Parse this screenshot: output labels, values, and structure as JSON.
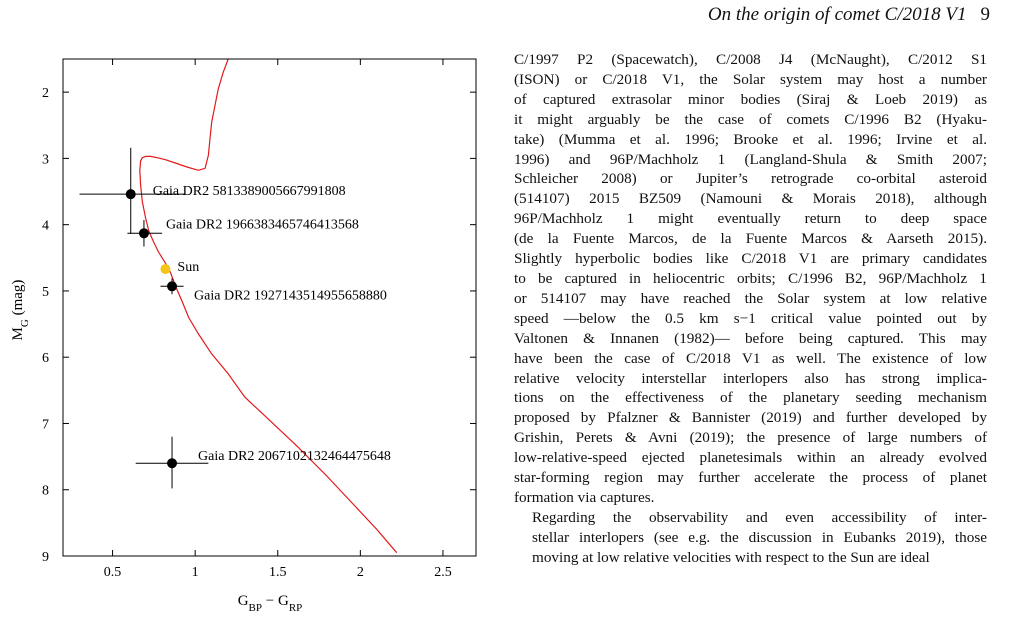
{
  "header": {
    "title": "On the origin of comet C/2018 V1",
    "page": "9"
  },
  "chart_data": {
    "type": "scatter",
    "xlabel": "G_BP − G_RP",
    "ylabel": "M_G (mag)",
    "xlim": [
      0.2,
      2.7
    ],
    "ylim": [
      9,
      1.5
    ],
    "xticks": [
      "0.5",
      "1",
      "1.5",
      "2",
      "2.5"
    ],
    "yticks": [
      "2",
      "3",
      "4",
      "5",
      "6",
      "7",
      "8",
      "9"
    ],
    "points": [
      {
        "label": "Gaia DR2 5813389005667991808",
        "x": 0.61,
        "y": 3.54,
        "xerr": [
          0.31,
          0.33
        ],
        "yerr": [
          0.7,
          0.6
        ]
      },
      {
        "label": "Gaia DR2 1966383465746413568",
        "x": 0.69,
        "y": 4.13,
        "xerr": [
          0.1,
          0.11
        ],
        "yerr": [
          0.2,
          0.2
        ]
      },
      {
        "label": "Gaia DR2 1927143514955658880",
        "x": 0.86,
        "y": 4.93,
        "xerr": [
          0.07,
          0.07
        ],
        "yerr": [
          0.12,
          0.12
        ]
      },
      {
        "label": "Gaia DR2 2067102132464475648",
        "x": 0.86,
        "y": 7.6,
        "xerr": [
          0.22,
          0.22
        ],
        "yerr": [
          0.4,
          0.38
        ]
      }
    ],
    "sun": {
      "label": "Sun",
      "x": 0.82,
      "y": 4.67,
      "color": "#f5c518"
    },
    "isochrone": {
      "color": "#e31a1c",
      "x": [
        2.22,
        2.1,
        1.95,
        1.8,
        1.62,
        1.45,
        1.3,
        1.2,
        1.1,
        1.02,
        0.96,
        0.92,
        0.89,
        0.87,
        0.85,
        0.82,
        0.78,
        0.75,
        0.72,
        0.7,
        0.68,
        0.67,
        0.665,
        0.67,
        0.68,
        0.7,
        0.73,
        0.77,
        0.82,
        0.88,
        0.95,
        1.02,
        1.06,
        1.08,
        1.09,
        1.1,
        1.12,
        1.14,
        1.17,
        1.2
      ],
      "y": [
        8.95,
        8.6,
        8.2,
        7.8,
        7.35,
        6.95,
        6.6,
        6.25,
        5.95,
        5.65,
        5.4,
        5.15,
        4.98,
        4.85,
        4.72,
        4.58,
        4.42,
        4.27,
        4.1,
        3.9,
        3.65,
        3.4,
        3.18,
        3.04,
        2.99,
        2.97,
        2.97,
        2.99,
        3.02,
        3.07,
        3.13,
        3.18,
        3.15,
        2.95,
        2.7,
        2.45,
        2.2,
        1.95,
        1.7,
        1.5
      ]
    }
  },
  "body": {
    "p1": [
      "C/1997 P2 (Spacewatch), C/2008 J4 (McNaught), C/2012 S1",
      "(ISON) or C/2018 V1, the Solar system may host a number",
      "of captured extrasolar minor bodies (Siraj & Loeb 2019) as",
      "it might arguably be the case of comets C/1996 B2 (Hyaku-",
      "take) (Mumma et al. 1996; Brooke et al. 1996; Irvine et al.",
      "1996) and 96P/Machholz 1 (Langland-Shula & Smith 2007;",
      "Schleicher 2008) or Jupiter’s retrograde co-orbital asteroid",
      "(514107) 2015 BZ509 (Namouni & Morais 2018), although",
      "96P/Machholz 1 might eventually return to deep space",
      "(de la Fuente Marcos, de la Fuente Marcos & Aarseth 2015).",
      "Slightly hyperbolic bodies like C/2018 V1 are primary candidates",
      "to be captured in heliocentric orbits; C/1996 B2, 96P/Machholz 1",
      "or 514107 may have reached the Solar system at low relative",
      "speed —below the 0.5 km s−1 critical value pointed out by",
      "Valtonen & Innanen (1982)— before being captured. This may",
      "have been the case of C/2018 V1 as well. The existence of low",
      "relative velocity interstellar interlopers also has strong implica-",
      "tions on the effectiveness of the planetary seeding mechanism",
      "proposed by Pfalzner & Bannister (2019) and further developed by",
      "Grishin, Perets & Avni (2019); the presence of large numbers of",
      "low-relative-speed ejected planetesimals within an already evolved",
      "star-forming region may further accelerate the process of planet",
      "formation via captures."
    ],
    "p2": [
      "Regarding the observability and even accessibility of inter-",
      "stellar interlopers (see e.g. the discussion in Eubanks 2019), those",
      "moving at low relative velocities with respect to the Sun are ideal"
    ]
  }
}
